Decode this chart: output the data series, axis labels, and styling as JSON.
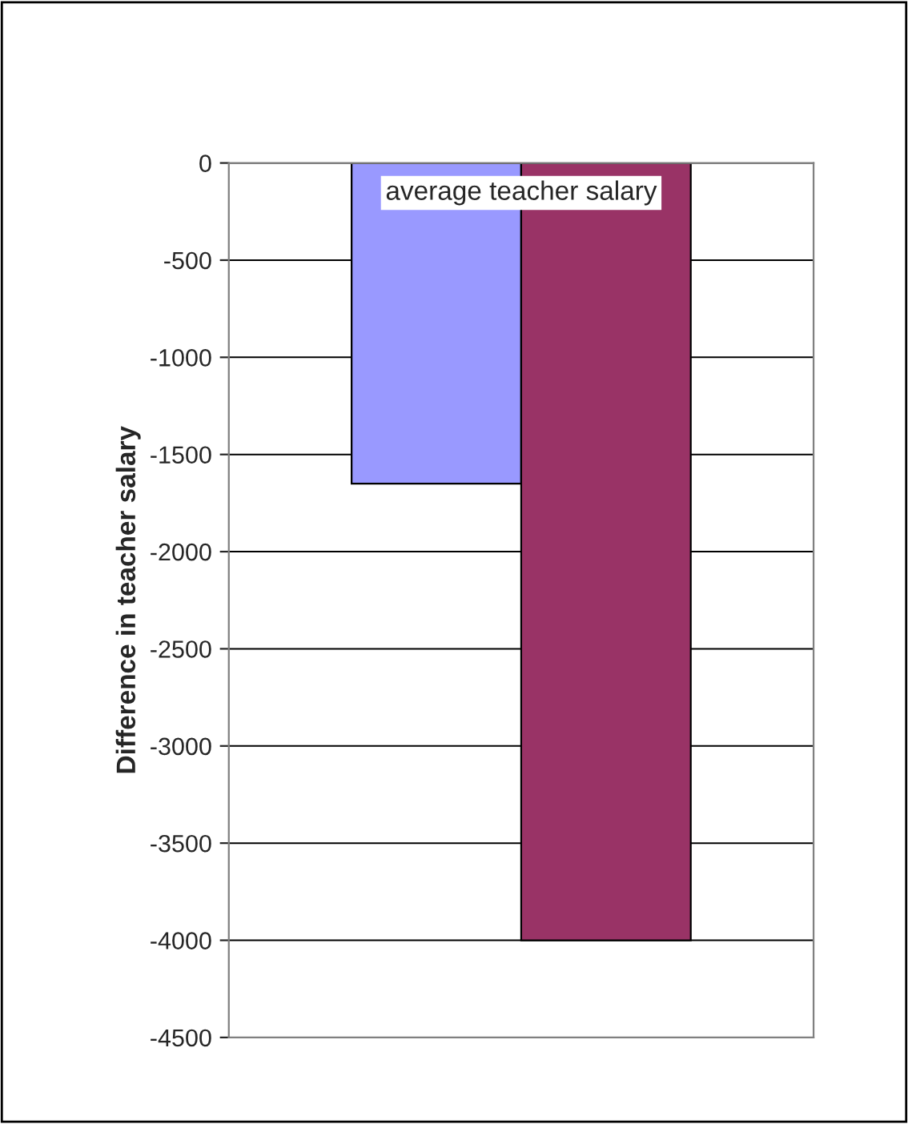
{
  "chart_data": {
    "type": "bar",
    "ylabel": "Difference in teacher salary",
    "categories": [
      "average teacher salary"
    ],
    "series": [
      {
        "color": "#9999ff",
        "values": [
          -1650
        ]
      },
      {
        "color": "#993366",
        "values": [
          -4000
        ]
      }
    ],
    "ylim": [
      -4500,
      0
    ],
    "yticks": [
      -4500,
      -4000,
      -3500,
      -3000,
      -2500,
      -2000,
      -1500,
      -1000,
      -500,
      0
    ],
    "grid": "y"
  }
}
